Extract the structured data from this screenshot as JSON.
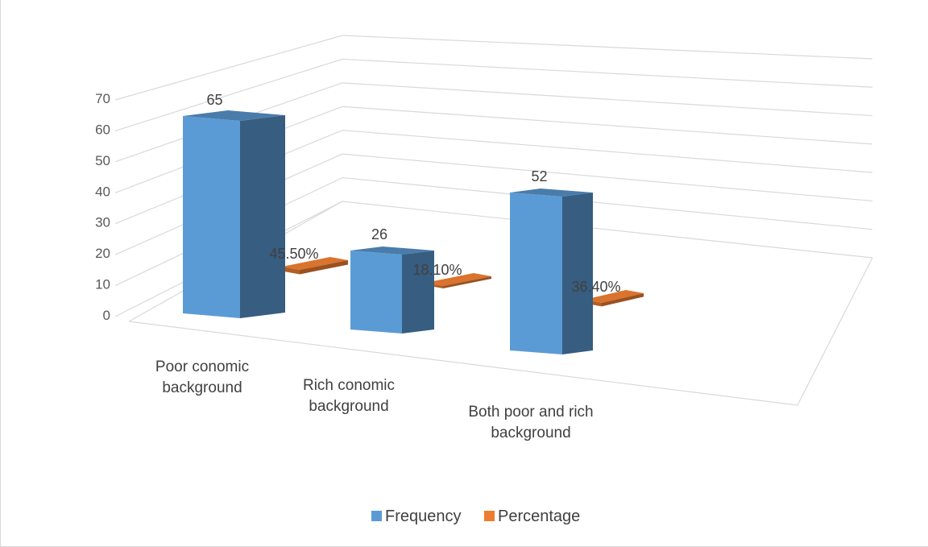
{
  "chart_data": {
    "type": "bar",
    "categories": [
      [
        "Poor conomic",
        "background"
      ],
      [
        "Rich conomic",
        "background"
      ],
      [
        "Both poor and rich",
        "background"
      ]
    ],
    "series": [
      {
        "name": "Frequency",
        "values": [
          65,
          26,
          52
        ],
        "labels": [
          "65",
          "26",
          "52"
        ],
        "color": "#5b9bd5"
      },
      {
        "name": "Percentage",
        "values": [
          45.5,
          18.1,
          36.4
        ],
        "labels": [
          "45.50%",
          "18.10%",
          "36.40%"
        ],
        "color": "#ed7d31"
      }
    ],
    "yticks": [
      "0",
      "10",
      "20",
      "30",
      "40",
      "50",
      "60",
      "70"
    ],
    "ylim": [
      0,
      70
    ],
    "grid": true,
    "legend_position": "bottom",
    "style": "3d-column"
  }
}
